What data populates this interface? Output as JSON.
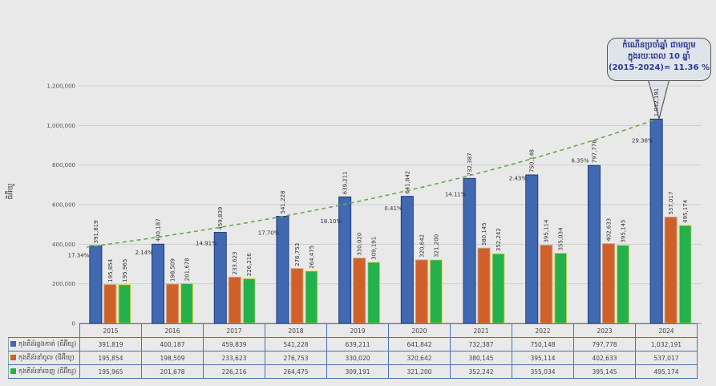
{
  "chart_data": {
    "type": "bar",
    "title": "",
    "ylabel": "ធីអ៊ីយូ",
    "ylim": [
      0,
      1200000
    ],
    "yticks": [
      "0",
      "200,000",
      "400,000",
      "600,000",
      "800,000",
      "1,000,000",
      "1,200,000"
    ],
    "categories": [
      "2015",
      "2016",
      "2017",
      "2018",
      "2019",
      "2020",
      "2021",
      "2022",
      "2023",
      "2024"
    ],
    "series": [
      {
        "name": "កុងតឺន័រឆ្លងកាត់ (ធីអ៊ីយូ)",
        "color": "#4169b2",
        "values": [
          391819,
          400187,
          459839,
          541228,
          639211,
          641842,
          732387,
          750148,
          797778,
          1032191
        ],
        "labels": [
          "391,819",
          "400,187",
          "459,839",
          "541,228",
          "639,211",
          "641,842",
          "732,387",
          "750,148",
          "797,778",
          "1,032,191"
        ]
      },
      {
        "name": "កុងតឺន័រនាំចូល (ធីអ៊ីយូ)",
        "color": "#d0602a",
        "values": [
          195854,
          198509,
          233623,
          276753,
          330020,
          320642,
          380145,
          395114,
          402633,
          537017
        ],
        "labels": [
          "195,854",
          "198,509",
          "233,623",
          "276,753",
          "330,020",
          "320,642",
          "380,145",
          "395,114",
          "402,633",
          "537,017"
        ]
      },
      {
        "name": "កុងតឺន័រនាំចេញ (ធីអ៊ីយូ)",
        "color": "#22b14c",
        "values": [
          195965,
          201678,
          226216,
          264475,
          309191,
          321200,
          352242,
          355034,
          395145,
          495174
        ],
        "labels": [
          "195,965",
          "201,678",
          "226,216",
          "264,475",
          "309,191",
          "321,200",
          "352,242",
          "355,034",
          "395,145",
          "495,174"
        ]
      }
    ],
    "growth_rates": [
      "17.34%",
      "2.14%",
      "14.91%",
      "17.70%",
      "18.10%",
      "0.41%",
      "14.11%",
      "2.43%",
      "6.35%",
      "29.38%"
    ],
    "trendline": {
      "type": "exponential",
      "color": "#6aa84f",
      "style": "dashed"
    },
    "annotation": {
      "line1": "កំណើនប្រចាំឆ្នាំ ជាមធ្យម",
      "line2": "ក្នុងរយៈពេល 10 ឆ្នាំ",
      "line3": "(2015-2024)= 11.36 %"
    }
  }
}
